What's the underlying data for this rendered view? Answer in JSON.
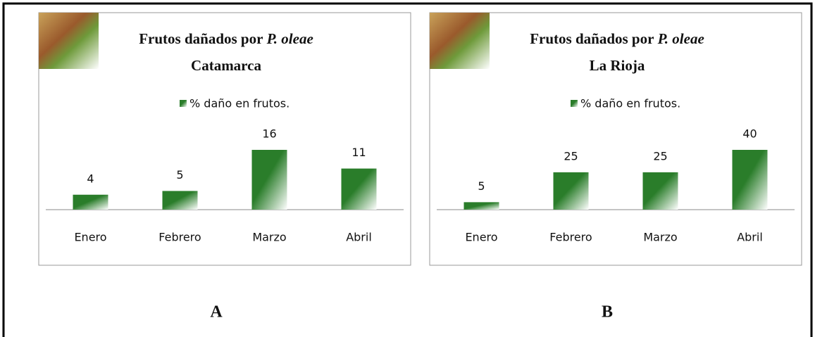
{
  "chart_data": [
    {
      "type": "bar",
      "label": "A",
      "title": "Frutos dañados por",
      "title_italic": "P. oleae",
      "subtitle": "Catamarca",
      "categories": [
        "Enero",
        "Febrero",
        "Marzo",
        "Abril"
      ],
      "series": [
        {
          "name": "% daño en frutos.",
          "color": "#2a7d2a",
          "values": [
            4,
            5,
            16,
            11
          ]
        }
      ]
    },
    {
      "type": "bar",
      "label": "B",
      "title": "Frutos dañados por",
      "title_italic": "P. oleae",
      "subtitle": "La Rioja",
      "categories": [
        "Enero",
        "Febrero",
        "Marzo",
        "Abril"
      ],
      "series": [
        {
          "name": "% daño en frutos.",
          "color": "#2a7d2a",
          "values": [
            5,
            25,
            25,
            40
          ]
        }
      ]
    }
  ]
}
